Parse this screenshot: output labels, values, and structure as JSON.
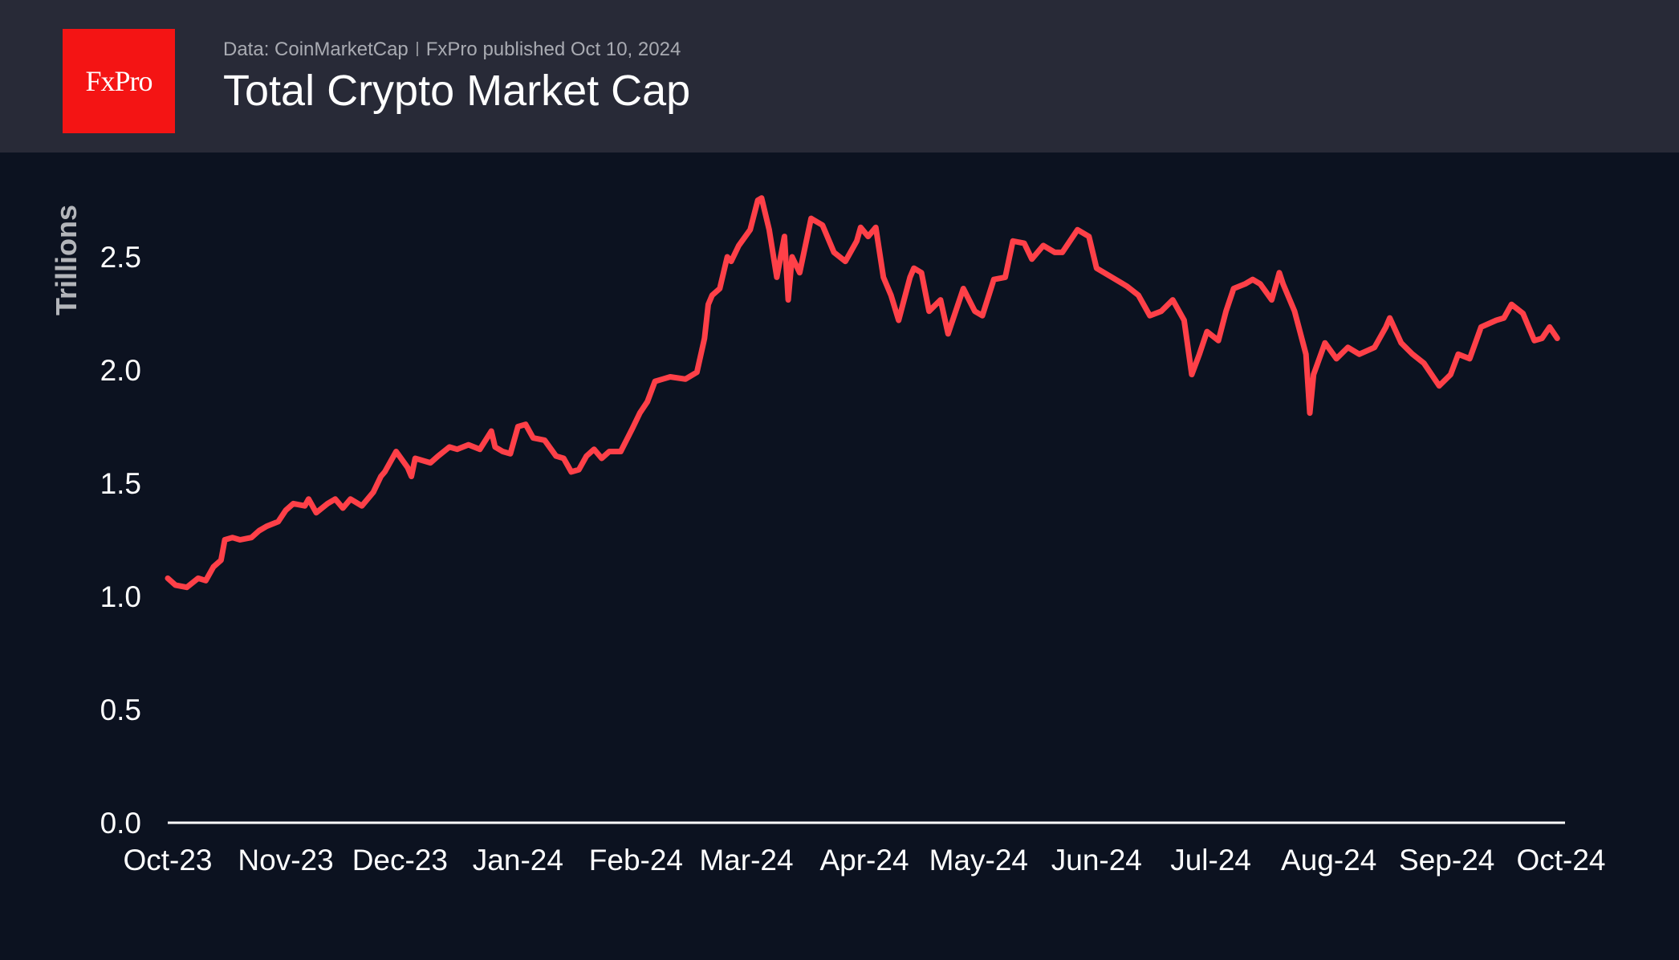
{
  "header": {
    "logo_text": "FxPro",
    "source": "Data: CoinMarketCap",
    "publisher": "FxPro published Oct 10, 2024",
    "title": "Total Crypto Market Cap"
  },
  "colors": {
    "line": "#ff4048",
    "header_bg": "#282a37",
    "plot_bg": "#0c1220",
    "logo_bg": "#f41414"
  },
  "chart_data": {
    "type": "line",
    "title": "Total Crypto Market Cap",
    "ylabel": "Trillions",
    "xlabel": "",
    "ylim": [
      0,
      2.8
    ],
    "yticks": [
      "0.0",
      "0.5",
      "1.0",
      "1.5",
      "2.0",
      "2.5"
    ],
    "ytick_values": [
      0,
      0.5,
      1.0,
      1.5,
      2.0,
      2.5
    ],
    "xticks": [
      "Oct-23",
      "Nov-23",
      "Dec-23",
      "Jan-24",
      "Feb-24",
      "Mar-24",
      "Apr-24",
      "May-24",
      "Jun-24",
      "Jul-24",
      "Aug-24",
      "Sep-24",
      "Oct-24"
    ],
    "xtick_dates": [
      "2023-10-01",
      "2023-11-01",
      "2023-12-01",
      "2024-01-01",
      "2024-02-01",
      "2024-03-01",
      "2024-04-01",
      "2024-05-01",
      "2024-06-01",
      "2024-07-01",
      "2024-08-01",
      "2024-09-01",
      "2024-10-01"
    ],
    "grid": false,
    "series": [
      {
        "x": [
          "2023-10-01",
          "2023-10-03",
          "2023-10-06",
          "2023-10-09",
          "2023-10-11",
          "2023-10-13",
          "2023-10-15",
          "2023-10-16",
          "2023-10-18",
          "2023-10-20",
          "2023-10-23",
          "2023-10-25",
          "2023-10-27",
          "2023-10-30",
          "2023-11-01",
          "2023-11-03",
          "2023-11-06",
          "2023-11-07",
          "2023-11-09",
          "2023-11-12",
          "2023-11-14",
          "2023-11-16",
          "2023-11-18",
          "2023-11-21",
          "2023-11-24",
          "2023-11-26",
          "2023-11-27",
          "2023-11-30",
          "2023-12-03",
          "2023-12-04",
          "2023-12-05",
          "2023-12-09",
          "2023-12-11",
          "2023-12-14",
          "2023-12-16",
          "2023-12-19",
          "2023-12-22",
          "2023-12-25",
          "2023-12-26",
          "2023-12-28",
          "2023-12-30",
          "2024-01-01",
          "2024-01-03",
          "2024-01-05",
          "2024-01-08",
          "2024-01-11",
          "2024-01-13",
          "2024-01-15",
          "2024-01-17",
          "2024-01-19",
          "2024-01-21",
          "2024-01-23",
          "2024-01-25",
          "2024-01-28",
          "2024-01-31",
          "2024-02-02",
          "2024-02-04",
          "2024-02-06",
          "2024-02-08",
          "2024-02-10",
          "2024-02-14",
          "2024-02-17",
          "2024-02-19",
          "2024-02-20",
          "2024-02-21",
          "2024-02-23",
          "2024-02-25",
          "2024-02-26",
          "2024-02-28",
          "2024-03-02",
          "2024-03-04",
          "2024-03-05",
          "2024-03-07",
          "2024-03-09",
          "2024-03-11",
          "2024-03-12",
          "2024-03-13",
          "2024-03-15",
          "2024-03-18",
          "2024-03-21",
          "2024-03-24",
          "2024-03-27",
          "2024-03-30",
          "2024-03-31",
          "2024-04-02",
          "2024-04-04",
          "2024-04-06",
          "2024-04-08",
          "2024-04-10",
          "2024-04-13",
          "2024-04-14",
          "2024-04-16",
          "2024-04-18",
          "2024-04-21",
          "2024-04-23",
          "2024-04-27",
          "2024-04-30",
          "2024-05-02",
          "2024-05-05",
          "2024-05-08",
          "2024-05-10",
          "2024-05-13",
          "2024-05-15",
          "2024-05-18",
          "2024-05-21",
          "2024-05-23",
          "2024-05-27",
          "2024-05-30",
          "2024-06-01",
          "2024-06-05",
          "2024-06-09",
          "2024-06-12",
          "2024-06-15",
          "2024-06-18",
          "2024-06-21",
          "2024-06-24",
          "2024-06-26",
          "2024-06-28",
          "2024-06-30",
          "2024-07-03",
          "2024-07-05",
          "2024-07-07",
          "2024-07-10",
          "2024-07-12",
          "2024-07-14",
          "2024-07-17",
          "2024-07-19",
          "2024-07-20",
          "2024-07-23",
          "2024-07-26",
          "2024-07-27",
          "2024-07-28",
          "2024-07-31",
          "2024-08-03",
          "2024-08-06",
          "2024-08-09",
          "2024-08-13",
          "2024-08-16",
          "2024-08-17",
          "2024-08-20",
          "2024-08-23",
          "2024-08-26",
          "2024-08-30",
          "2024-09-02",
          "2024-09-04",
          "2024-09-07",
          "2024-09-10",
          "2024-09-14",
          "2024-09-16",
          "2024-09-18",
          "2024-09-21",
          "2024-09-24",
          "2024-09-26",
          "2024-09-28",
          "2024-09-30"
        ],
        "y": [
          1.08,
          1.05,
          1.04,
          1.08,
          1.07,
          1.13,
          1.16,
          1.25,
          1.26,
          1.25,
          1.26,
          1.29,
          1.31,
          1.33,
          1.38,
          1.41,
          1.4,
          1.43,
          1.37,
          1.41,
          1.43,
          1.39,
          1.43,
          1.4,
          1.46,
          1.53,
          1.55,
          1.64,
          1.57,
          1.53,
          1.61,
          1.59,
          1.62,
          1.66,
          1.65,
          1.67,
          1.65,
          1.73,
          1.66,
          1.64,
          1.63,
          1.75,
          1.76,
          1.7,
          1.69,
          1.62,
          1.61,
          1.55,
          1.56,
          1.62,
          1.65,
          1.61,
          1.64,
          1.64,
          1.74,
          1.81,
          1.86,
          1.95,
          1.96,
          1.97,
          1.96,
          1.99,
          2.14,
          2.29,
          2.33,
          2.36,
          2.5,
          2.48,
          2.55,
          2.62,
          2.75,
          2.76,
          2.62,
          2.41,
          2.59,
          2.31,
          2.5,
          2.43,
          2.67,
          2.64,
          2.52,
          2.48,
          2.57,
          2.63,
          2.59,
          2.63,
          2.41,
          2.33,
          2.22,
          2.41,
          2.45,
          2.43,
          2.26,
          2.31,
          2.16,
          2.36,
          2.26,
          2.24,
          2.4,
          2.41,
          2.57,
          2.56,
          2.49,
          2.55,
          2.52,
          2.52,
          2.62,
          2.59,
          2.45,
          2.41,
          2.37,
          2.33,
          2.24,
          2.26,
          2.31,
          2.22,
          1.98,
          2.07,
          2.17,
          2.13,
          2.26,
          2.36,
          2.38,
          2.4,
          2.38,
          2.31,
          2.43,
          2.38,
          2.26,
          2.07,
          1.81,
          1.98,
          2.12,
          2.05,
          2.1,
          2.07,
          2.1,
          2.19,
          2.23,
          2.12,
          2.07,
          2.03,
          1.93,
          1.98,
          2.07,
          2.05,
          2.19,
          2.22,
          2.23,
          2.29,
          2.25,
          2.13,
          2.14,
          2.19,
          2.14
        ]
      }
    ]
  }
}
